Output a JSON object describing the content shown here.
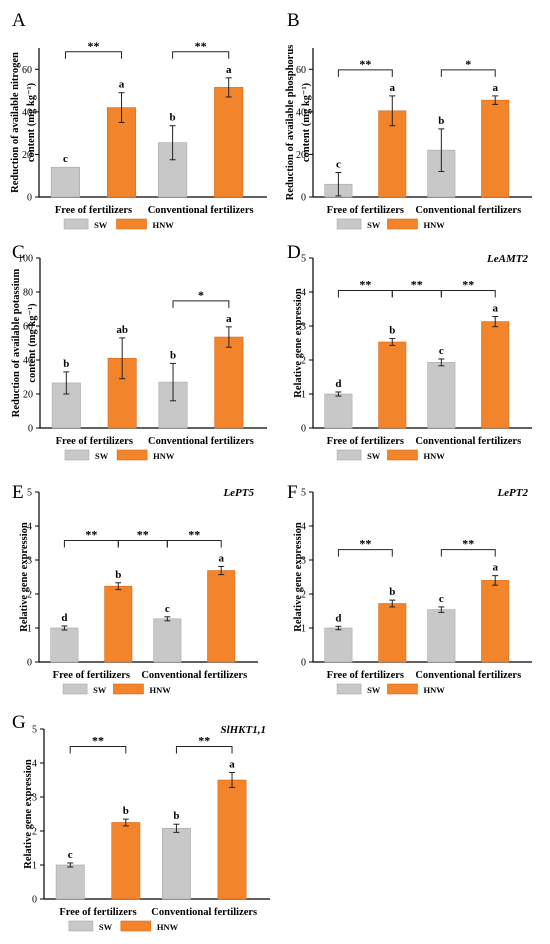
{
  "figure": {
    "group_labels": [
      "Free of fertilizers",
      "Conventional fertilizers"
    ],
    "legend": [
      {
        "label": "SW",
        "color": "#c8c8c8"
      },
      {
        "label": "HNW",
        "color": "#f2842b"
      }
    ],
    "colors": {
      "sw": "#c8c8c8",
      "hnw": "#f2842b",
      "axis": "#000000"
    }
  },
  "chart_data": [
    {
      "panel": "A",
      "type": "bar",
      "ylabel_lines": [
        "Reduction of available nitrogen",
        "content (mg kg⁻¹)"
      ],
      "ylim": [
        0,
        70
      ],
      "yticks": [
        0,
        20,
        40,
        60
      ],
      "gene": "",
      "bars": [
        {
          "series": "SW",
          "group": "Free of fertilizers",
          "value": 14.0,
          "error": 0,
          "letter": "c"
        },
        {
          "series": "HNW",
          "group": "Free of fertilizers",
          "value": 42.0,
          "error": 7,
          "letter": "a"
        },
        {
          "series": "SW",
          "group": "Conventional fertilizers",
          "value": 25.5,
          "error": 8,
          "letter": "b"
        },
        {
          "series": "HNW",
          "group": "Conventional fertilizers",
          "value": 51.5,
          "error": 4.5,
          "letter": "a"
        }
      ],
      "significance": [
        {
          "from": 0,
          "to": 1,
          "label": "**"
        },
        {
          "from": 2,
          "to": 3,
          "label": "**"
        }
      ]
    },
    {
      "panel": "B",
      "type": "bar",
      "ylabel_lines": [
        "Reduction of available phosphorus",
        "content (mg kg⁻¹)"
      ],
      "ylim": [
        0,
        70
      ],
      "yticks": [
        0,
        20,
        40,
        60
      ],
      "gene": "",
      "bars": [
        {
          "series": "SW",
          "group": "Free of fertilizers",
          "value": 6.0,
          "error": 5.5,
          "letter": "c"
        },
        {
          "series": "HNW",
          "group": "Free of fertilizers",
          "value": 40.5,
          "error": 7,
          "letter": "a"
        },
        {
          "series": "SW",
          "group": "Conventional fertilizers",
          "value": 22.0,
          "error": 10,
          "letter": "b"
        },
        {
          "series": "HNW",
          "group": "Conventional fertilizers",
          "value": 45.5,
          "error": 2,
          "letter": "a"
        }
      ],
      "significance": [
        {
          "from": 0,
          "to": 1,
          "label": "**"
        },
        {
          "from": 2,
          "to": 3,
          "label": "*"
        }
      ]
    },
    {
      "panel": "C",
      "type": "bar",
      "ylabel_lines": [
        "Reduction of available potassium",
        "content (mg kg⁻¹)"
      ],
      "ylim": [
        0,
        100
      ],
      "yticks": [
        0,
        20,
        40,
        60,
        80,
        100
      ],
      "gene": "",
      "bars": [
        {
          "series": "SW",
          "group": "Free of fertilizers",
          "value": 26.5,
          "error": 6.5,
          "letter": "b"
        },
        {
          "series": "HNW",
          "group": "Free of fertilizers",
          "value": 41.0,
          "error": 12,
          "letter": "ab"
        },
        {
          "series": "SW",
          "group": "Conventional fertilizers",
          "value": 27.0,
          "error": 11,
          "letter": "b"
        },
        {
          "series": "HNW",
          "group": "Conventional fertilizers",
          "value": 53.5,
          "error": 6,
          "letter": "a"
        }
      ],
      "significance": [
        {
          "from": 2,
          "to": 3,
          "label": "*"
        }
      ]
    },
    {
      "panel": "D",
      "type": "bar",
      "ylabel_lines": [
        "Relative gene expression"
      ],
      "ylim": [
        0,
        5
      ],
      "yticks": [
        0,
        1,
        2,
        3,
        4,
        5
      ],
      "gene": "LeAMT2",
      "bars": [
        {
          "series": "SW",
          "group": "Free of fertilizers",
          "value": 1.0,
          "error": 0.06,
          "letter": "d"
        },
        {
          "series": "HNW",
          "group": "Free of fertilizers",
          "value": 2.53,
          "error": 0.1,
          "letter": "b"
        },
        {
          "series": "SW",
          "group": "Conventional fertilizers",
          "value": 1.93,
          "error": 0.1,
          "letter": "c"
        },
        {
          "series": "HNW",
          "group": "Conventional fertilizers",
          "value": 3.13,
          "error": 0.15,
          "letter": "a"
        }
      ],
      "significance": [
        {
          "from": 0,
          "to": 1,
          "label": "**"
        },
        {
          "from": 1,
          "to": 2,
          "label": "**"
        },
        {
          "from": 2,
          "to": 3,
          "label": "**"
        }
      ]
    },
    {
      "panel": "E",
      "type": "bar",
      "ylabel_lines": [
        "Relative gene expression"
      ],
      "ylim": [
        0,
        5
      ],
      "yticks": [
        0,
        1,
        2,
        3,
        4,
        5
      ],
      "gene": "LePT5",
      "bars": [
        {
          "series": "SW",
          "group": "Free of fertilizers",
          "value": 1.0,
          "error": 0.06,
          "letter": "d"
        },
        {
          "series": "HNW",
          "group": "Free of fertilizers",
          "value": 2.23,
          "error": 0.1,
          "letter": "b"
        },
        {
          "series": "SW",
          "group": "Conventional fertilizers",
          "value": 1.27,
          "error": 0.06,
          "letter": "c"
        },
        {
          "series": "HNW",
          "group": "Conventional fertilizers",
          "value": 2.69,
          "error": 0.12,
          "letter": "a"
        }
      ],
      "significance": [
        {
          "from": 0,
          "to": 1,
          "label": "**"
        },
        {
          "from": 1,
          "to": 2,
          "label": "**"
        },
        {
          "from": 2,
          "to": 3,
          "label": "**"
        }
      ]
    },
    {
      "panel": "F",
      "type": "bar",
      "ylabel_lines": [
        "Relative gene expression"
      ],
      "ylim": [
        0,
        5
      ],
      "yticks": [
        0,
        1,
        2,
        3,
        4,
        5
      ],
      "gene": "LePT2",
      "bars": [
        {
          "series": "SW",
          "group": "Free of fertilizers",
          "value": 1.0,
          "error": 0.05,
          "letter": "d"
        },
        {
          "series": "HNW",
          "group": "Free of fertilizers",
          "value": 1.72,
          "error": 0.1,
          "letter": "b"
        },
        {
          "series": "SW",
          "group": "Conventional fertilizers",
          "value": 1.54,
          "error": 0.08,
          "letter": "c"
        },
        {
          "series": "HNW",
          "group": "Conventional fertilizers",
          "value": 2.4,
          "error": 0.14,
          "letter": "a"
        }
      ],
      "significance": [
        {
          "from": 0,
          "to": 1,
          "label": "**"
        },
        {
          "from": 2,
          "to": 3,
          "label": "**"
        }
      ]
    },
    {
      "panel": "G",
      "type": "bar",
      "ylabel_lines": [
        "Relative gene expression"
      ],
      "ylim": [
        0,
        5
      ],
      "yticks": [
        0,
        1,
        2,
        3,
        4,
        5
      ],
      "gene": "SlHKT1,1",
      "bars": [
        {
          "series": "SW",
          "group": "Free of fertilizers",
          "value": 1.0,
          "error": 0.06,
          "letter": "c"
        },
        {
          "series": "HNW",
          "group": "Free of fertilizers",
          "value": 2.25,
          "error": 0.1,
          "letter": "b"
        },
        {
          "series": "SW",
          "group": "Conventional fertilizers",
          "value": 2.08,
          "error": 0.12,
          "letter": "b"
        },
        {
          "series": "HNW",
          "group": "Conventional fertilizers",
          "value": 3.5,
          "error": 0.22,
          "letter": "a"
        }
      ],
      "significance": [
        {
          "from": 0,
          "to": 1,
          "label": "**"
        },
        {
          "from": 2,
          "to": 3,
          "label": "**"
        }
      ]
    }
  ]
}
